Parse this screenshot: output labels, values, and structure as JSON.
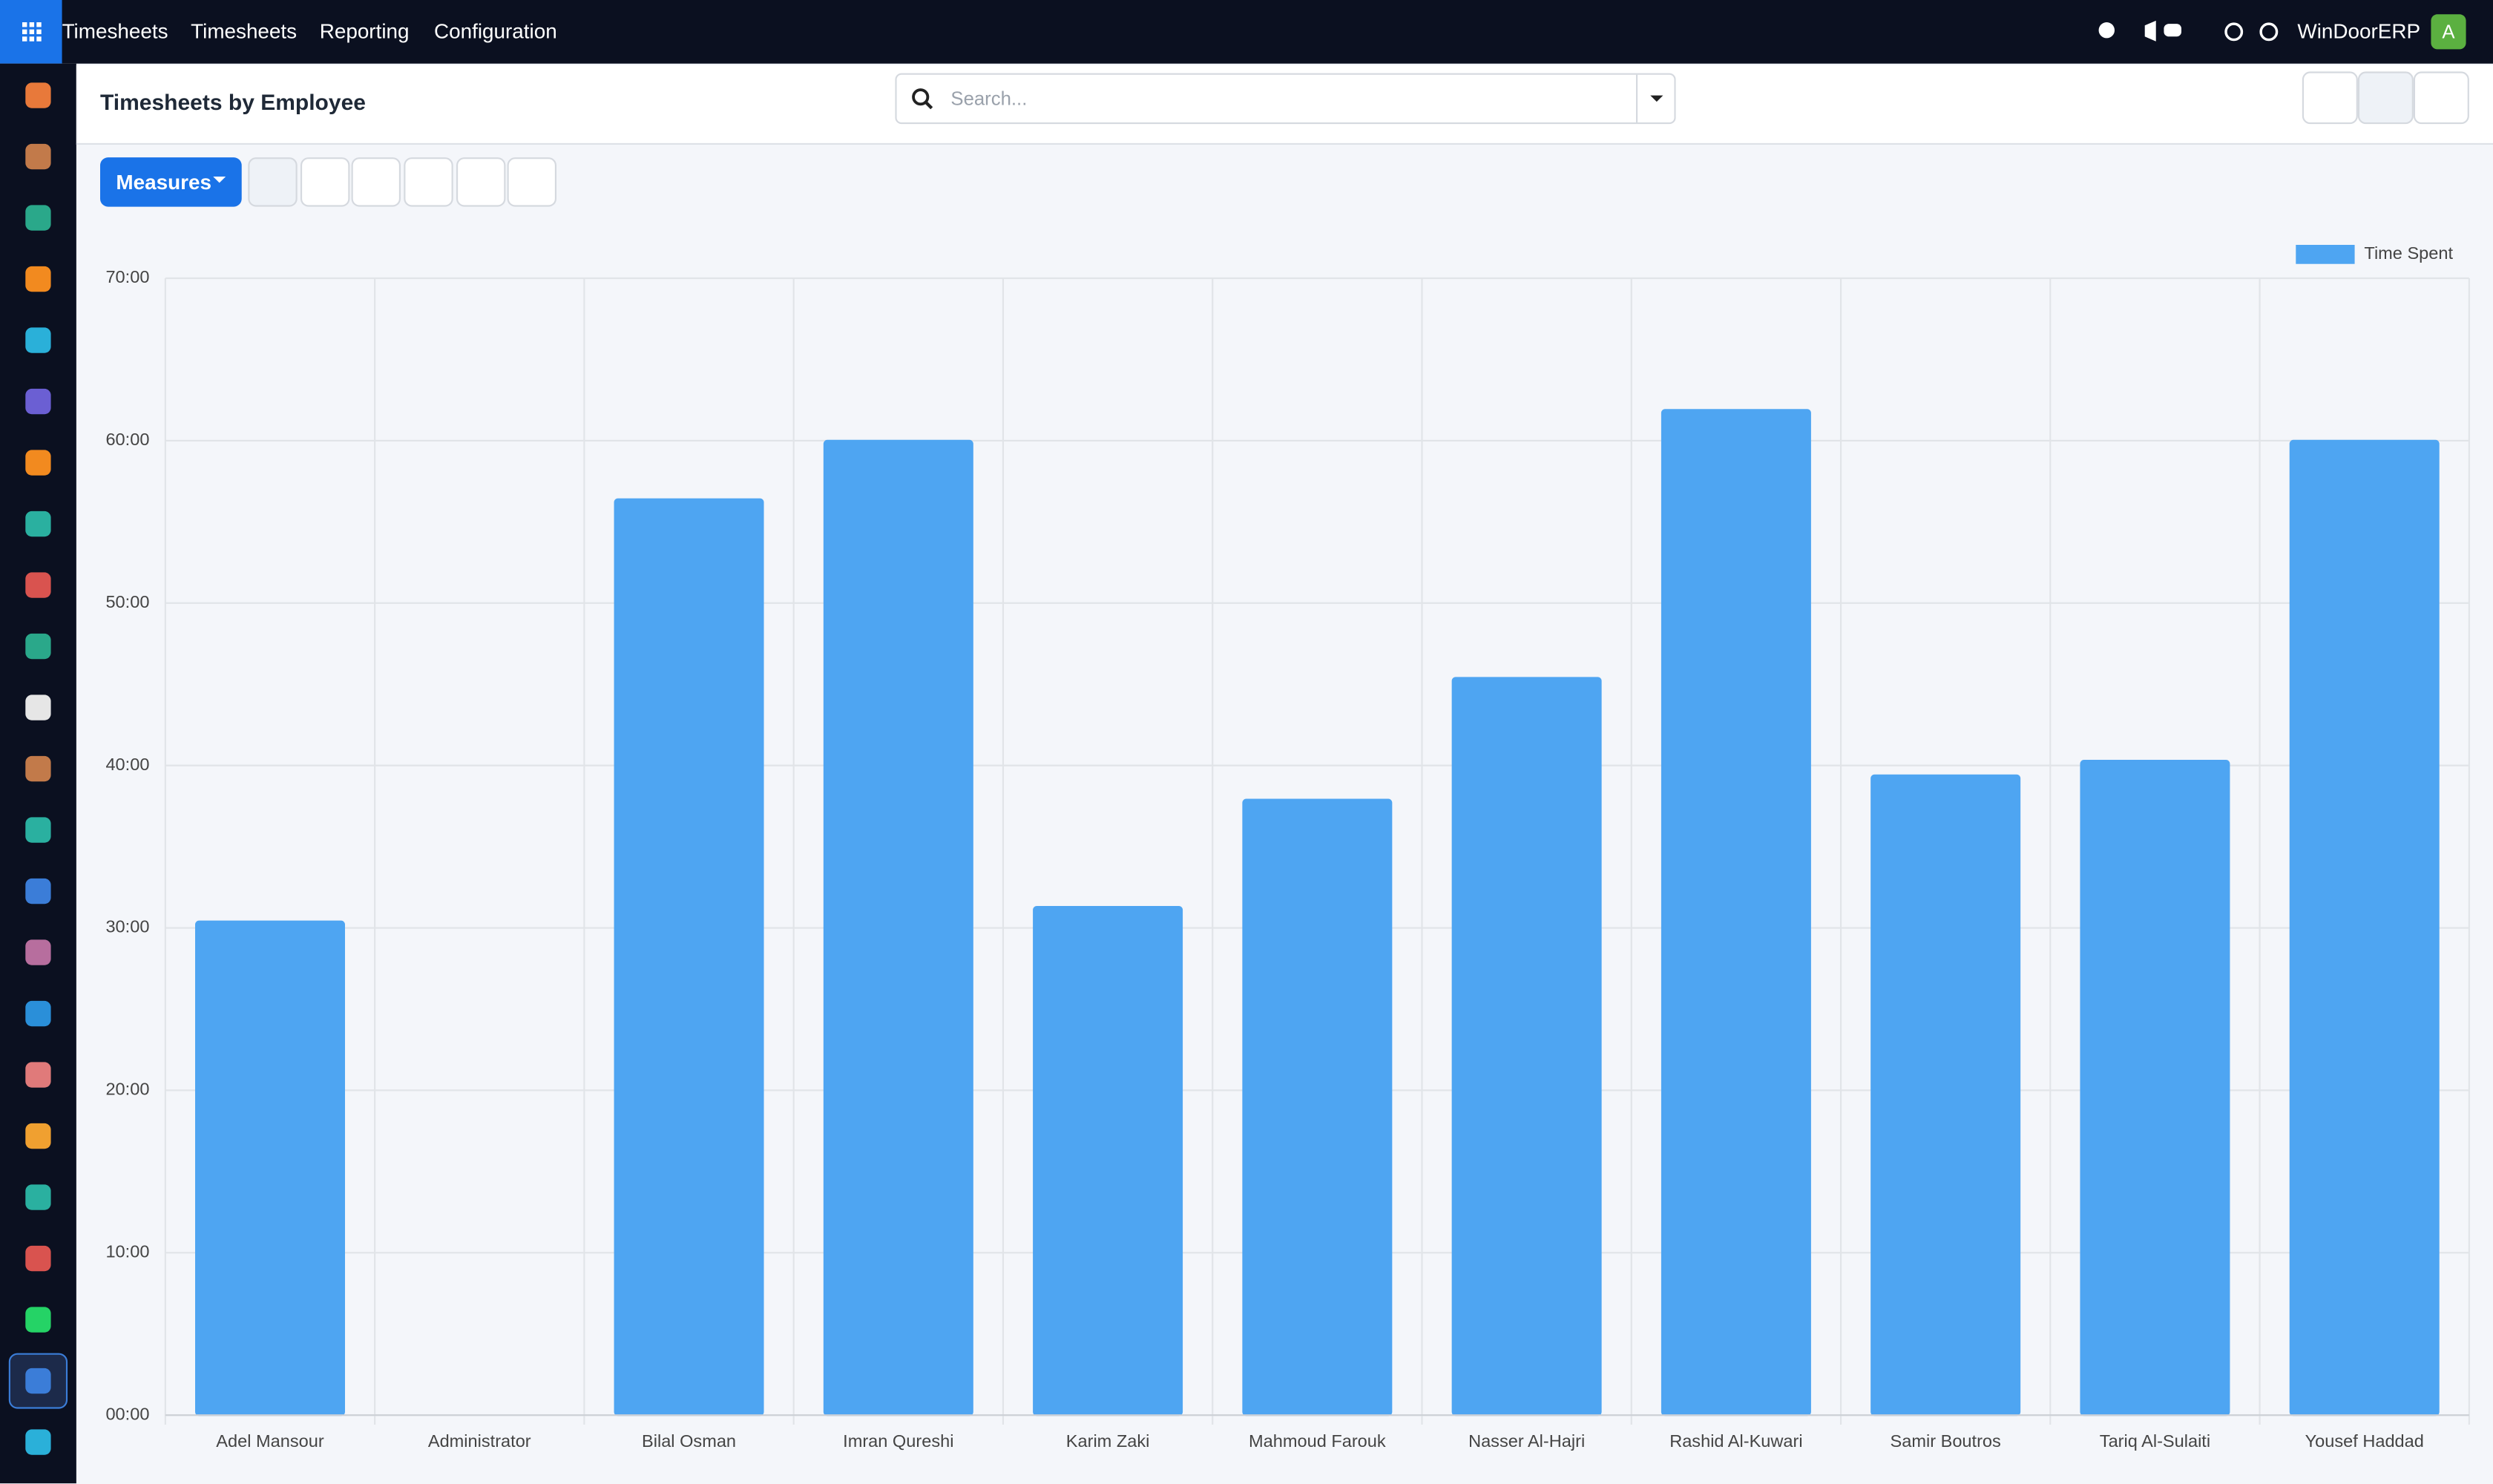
{
  "nav": {
    "menu": [
      "Timesheets",
      "Timesheets",
      "Reporting",
      "Configuration"
    ],
    "company": "WinDoorERP",
    "avatar": "A"
  },
  "control_panel": {
    "title": "Timesheets by Employee",
    "search_placeholder": "Search...",
    "measures": "Measures"
  },
  "chart_data": {
    "type": "bar",
    "categories": [
      "Adel Mansour",
      "Administrator",
      "Bilal Osman",
      "Imran Qureshi",
      "Karim Zaki",
      "Mahmoud Farouk",
      "Nasser Al-Hajri",
      "Rashid Al-Kuwari",
      "Samir Boutros",
      "Tariq Al-Sulaiti",
      "Yousef Haddad"
    ],
    "series": [
      {
        "name": "Time Spent",
        "color": "#4ea5f2",
        "values": [
          30.4,
          0,
          56.4,
          60,
          31.3,
          37.9,
          45.4,
          61.9,
          39.4,
          40.3,
          60
        ]
      }
    ],
    "ylim": [
      0,
      70
    ],
    "yticks": [
      {
        "value": 0,
        "label": "00:00"
      },
      {
        "value": 10,
        "label": "10:00"
      },
      {
        "value": 20,
        "label": "20:00"
      },
      {
        "value": 30,
        "label": "30:00"
      },
      {
        "value": 40,
        "label": "40:00"
      },
      {
        "value": 50,
        "label": "50:00"
      },
      {
        "value": 60,
        "label": "60:00"
      },
      {
        "value": 70,
        "label": "70:00"
      }
    ],
    "grid": true,
    "legend": "top-right"
  }
}
